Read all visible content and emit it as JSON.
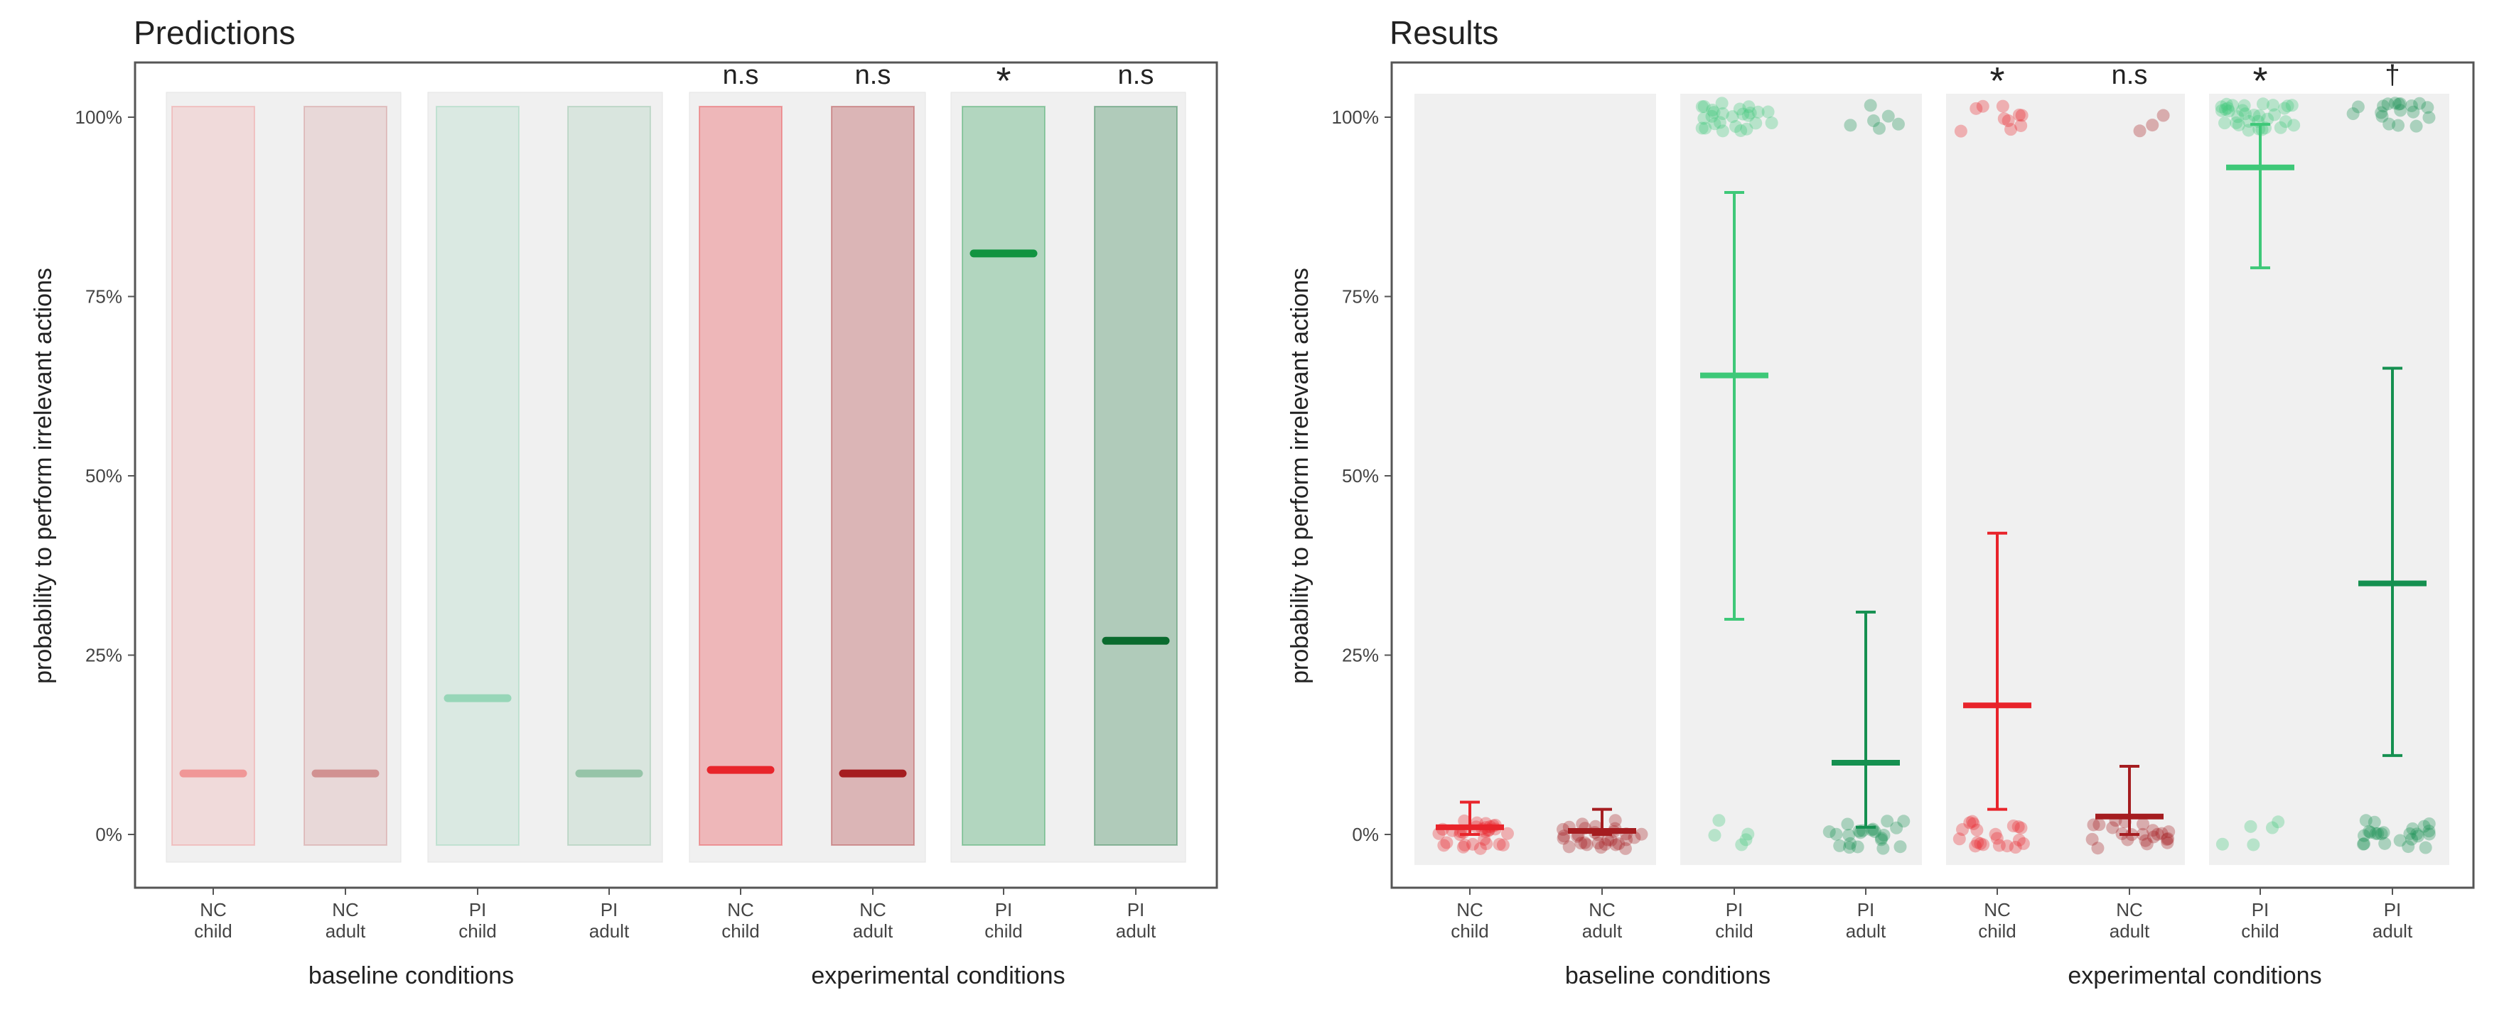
{
  "chart_data": [
    {
      "type": "bar",
      "title": "Predictions",
      "ylabel": "probability to perform irrelevant actions",
      "ylim": [
        0,
        1
      ],
      "yticks": [
        "0%",
        "25%",
        "50%",
        "75%",
        "100%"
      ],
      "categories": [
        [
          "NC",
          "child"
        ],
        [
          "NC",
          "adult"
        ],
        [
          "PI",
          "child"
        ],
        [
          "PI",
          "adult"
        ],
        [
          "NC",
          "child"
        ],
        [
          "NC",
          "adult"
        ],
        [
          "PI",
          "child"
        ],
        [
          "PI",
          "adult"
        ]
      ],
      "group_labels": [
        "baseline conditions",
        "experimental conditions"
      ],
      "significance": [
        "",
        "",
        "",
        "",
        "n.s",
        "n.s",
        "*",
        "n.s"
      ],
      "values": [
        0.085,
        0.085,
        0.19,
        0.085,
        0.09,
        0.085,
        0.81,
        0.27
      ],
      "bar_colors": [
        "#f08080",
        "#c97a7a",
        "#80cfa9",
        "#7fb896",
        "#e8252b",
        "#a51d20",
        "#119440",
        "#0a6b2e"
      ],
      "emphasis": [
        false,
        false,
        false,
        false,
        true,
        true,
        true,
        true
      ]
    },
    {
      "type": "scatter",
      "title": "Results",
      "ylabel": "probability to perform irrelevant actions",
      "ylim": [
        0,
        1
      ],
      "yticks": [
        "0%",
        "25%",
        "50%",
        "75%",
        "100%"
      ],
      "categories": [
        [
          "NC",
          "child"
        ],
        [
          "NC",
          "adult"
        ],
        [
          "PI",
          "child"
        ],
        [
          "PI",
          "adult"
        ],
        [
          "NC",
          "child"
        ],
        [
          "NC",
          "adult"
        ],
        [
          "PI",
          "child"
        ],
        [
          "PI",
          "adult"
        ]
      ],
      "group_labels": [
        "baseline conditions",
        "experimental conditions"
      ],
      "significance": [
        "",
        "",
        "",
        "",
        "*",
        "n.s",
        "*",
        "†"
      ],
      "means": [
        0.01,
        0.005,
        0.64,
        0.1,
        0.18,
        0.025,
        0.93,
        0.35
      ],
      "ci_low": [
        0.0,
        0.0,
        0.3,
        0.01,
        0.035,
        0.0,
        0.79,
        0.11
      ],
      "ci_high": [
        0.045,
        0.035,
        0.895,
        0.31,
        0.42,
        0.095,
        0.99,
        0.65
      ],
      "colors": [
        "#e8242b",
        "#a51d20",
        "#3ec878",
        "#159050",
        "#e8242b",
        "#a51d20",
        "#3ec878",
        "#159050"
      ],
      "n_zero": [
        30,
        30,
        5,
        22,
        20,
        22,
        5,
        24
      ],
      "n_one": [
        0,
        0,
        26,
        6,
        10,
        3,
        32,
        18
      ]
    }
  ]
}
